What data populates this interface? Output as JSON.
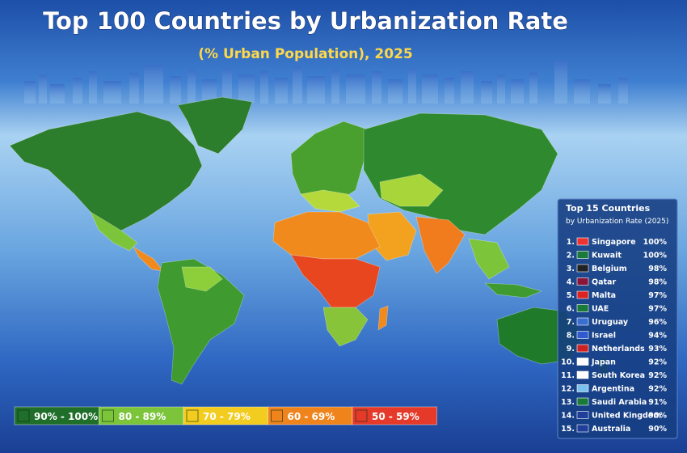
{
  "title": "Top 100 Countries by Urbanization Rate",
  "subtitle": "(% Urban Population), 2025",
  "legend": [
    {
      "label": "90% - 100%",
      "color": "#1f6e2a"
    },
    {
      "label": "80 - 89%",
      "color": "#7cc43a"
    },
    {
      "label": "70 - 79%",
      "color": "#f2cc1e"
    },
    {
      "label": "60 - 69%",
      "color": "#f0841c"
    },
    {
      "label": "50 - 59%",
      "color": "#e53a2a"
    }
  ],
  "top_list": {
    "heading": "Top 15 Countries",
    "subheading": "by Urbanization Rate (2025)",
    "rows": [
      {
        "rank": "1.",
        "country": "Singapore",
        "value": "100%"
      },
      {
        "rank": "2.",
        "country": "Kuwait",
        "value": "100%"
      },
      {
        "rank": "3.",
        "country": "Belgium",
        "value": "98%"
      },
      {
        "rank": "4.",
        "country": "Qatar",
        "value": "98%"
      },
      {
        "rank": "5.",
        "country": "Malta",
        "value": "97%"
      },
      {
        "rank": "6.",
        "country": "UAE",
        "value": "97%"
      },
      {
        "rank": "7.",
        "country": "Uruguay",
        "value": "96%"
      },
      {
        "rank": "8.",
        "country": "Israel",
        "value": "94%"
      },
      {
        "rank": "9.",
        "country": "Netherlands",
        "value": "93%"
      },
      {
        "rank": "10.",
        "country": "Japan",
        "value": "92%"
      },
      {
        "rank": "11.",
        "country": "South Korea",
        "value": "92%"
      },
      {
        "rank": "12.",
        "country": "Argentina",
        "value": "92%"
      },
      {
        "rank": "13.",
        "country": "Saudi Arabia",
        "value": "91%"
      },
      {
        "rank": "14.",
        "country": "United Kingdom",
        "value": "90%"
      },
      {
        "rank": "15.",
        "country": "Australia",
        "value": "90%"
      }
    ]
  }
}
